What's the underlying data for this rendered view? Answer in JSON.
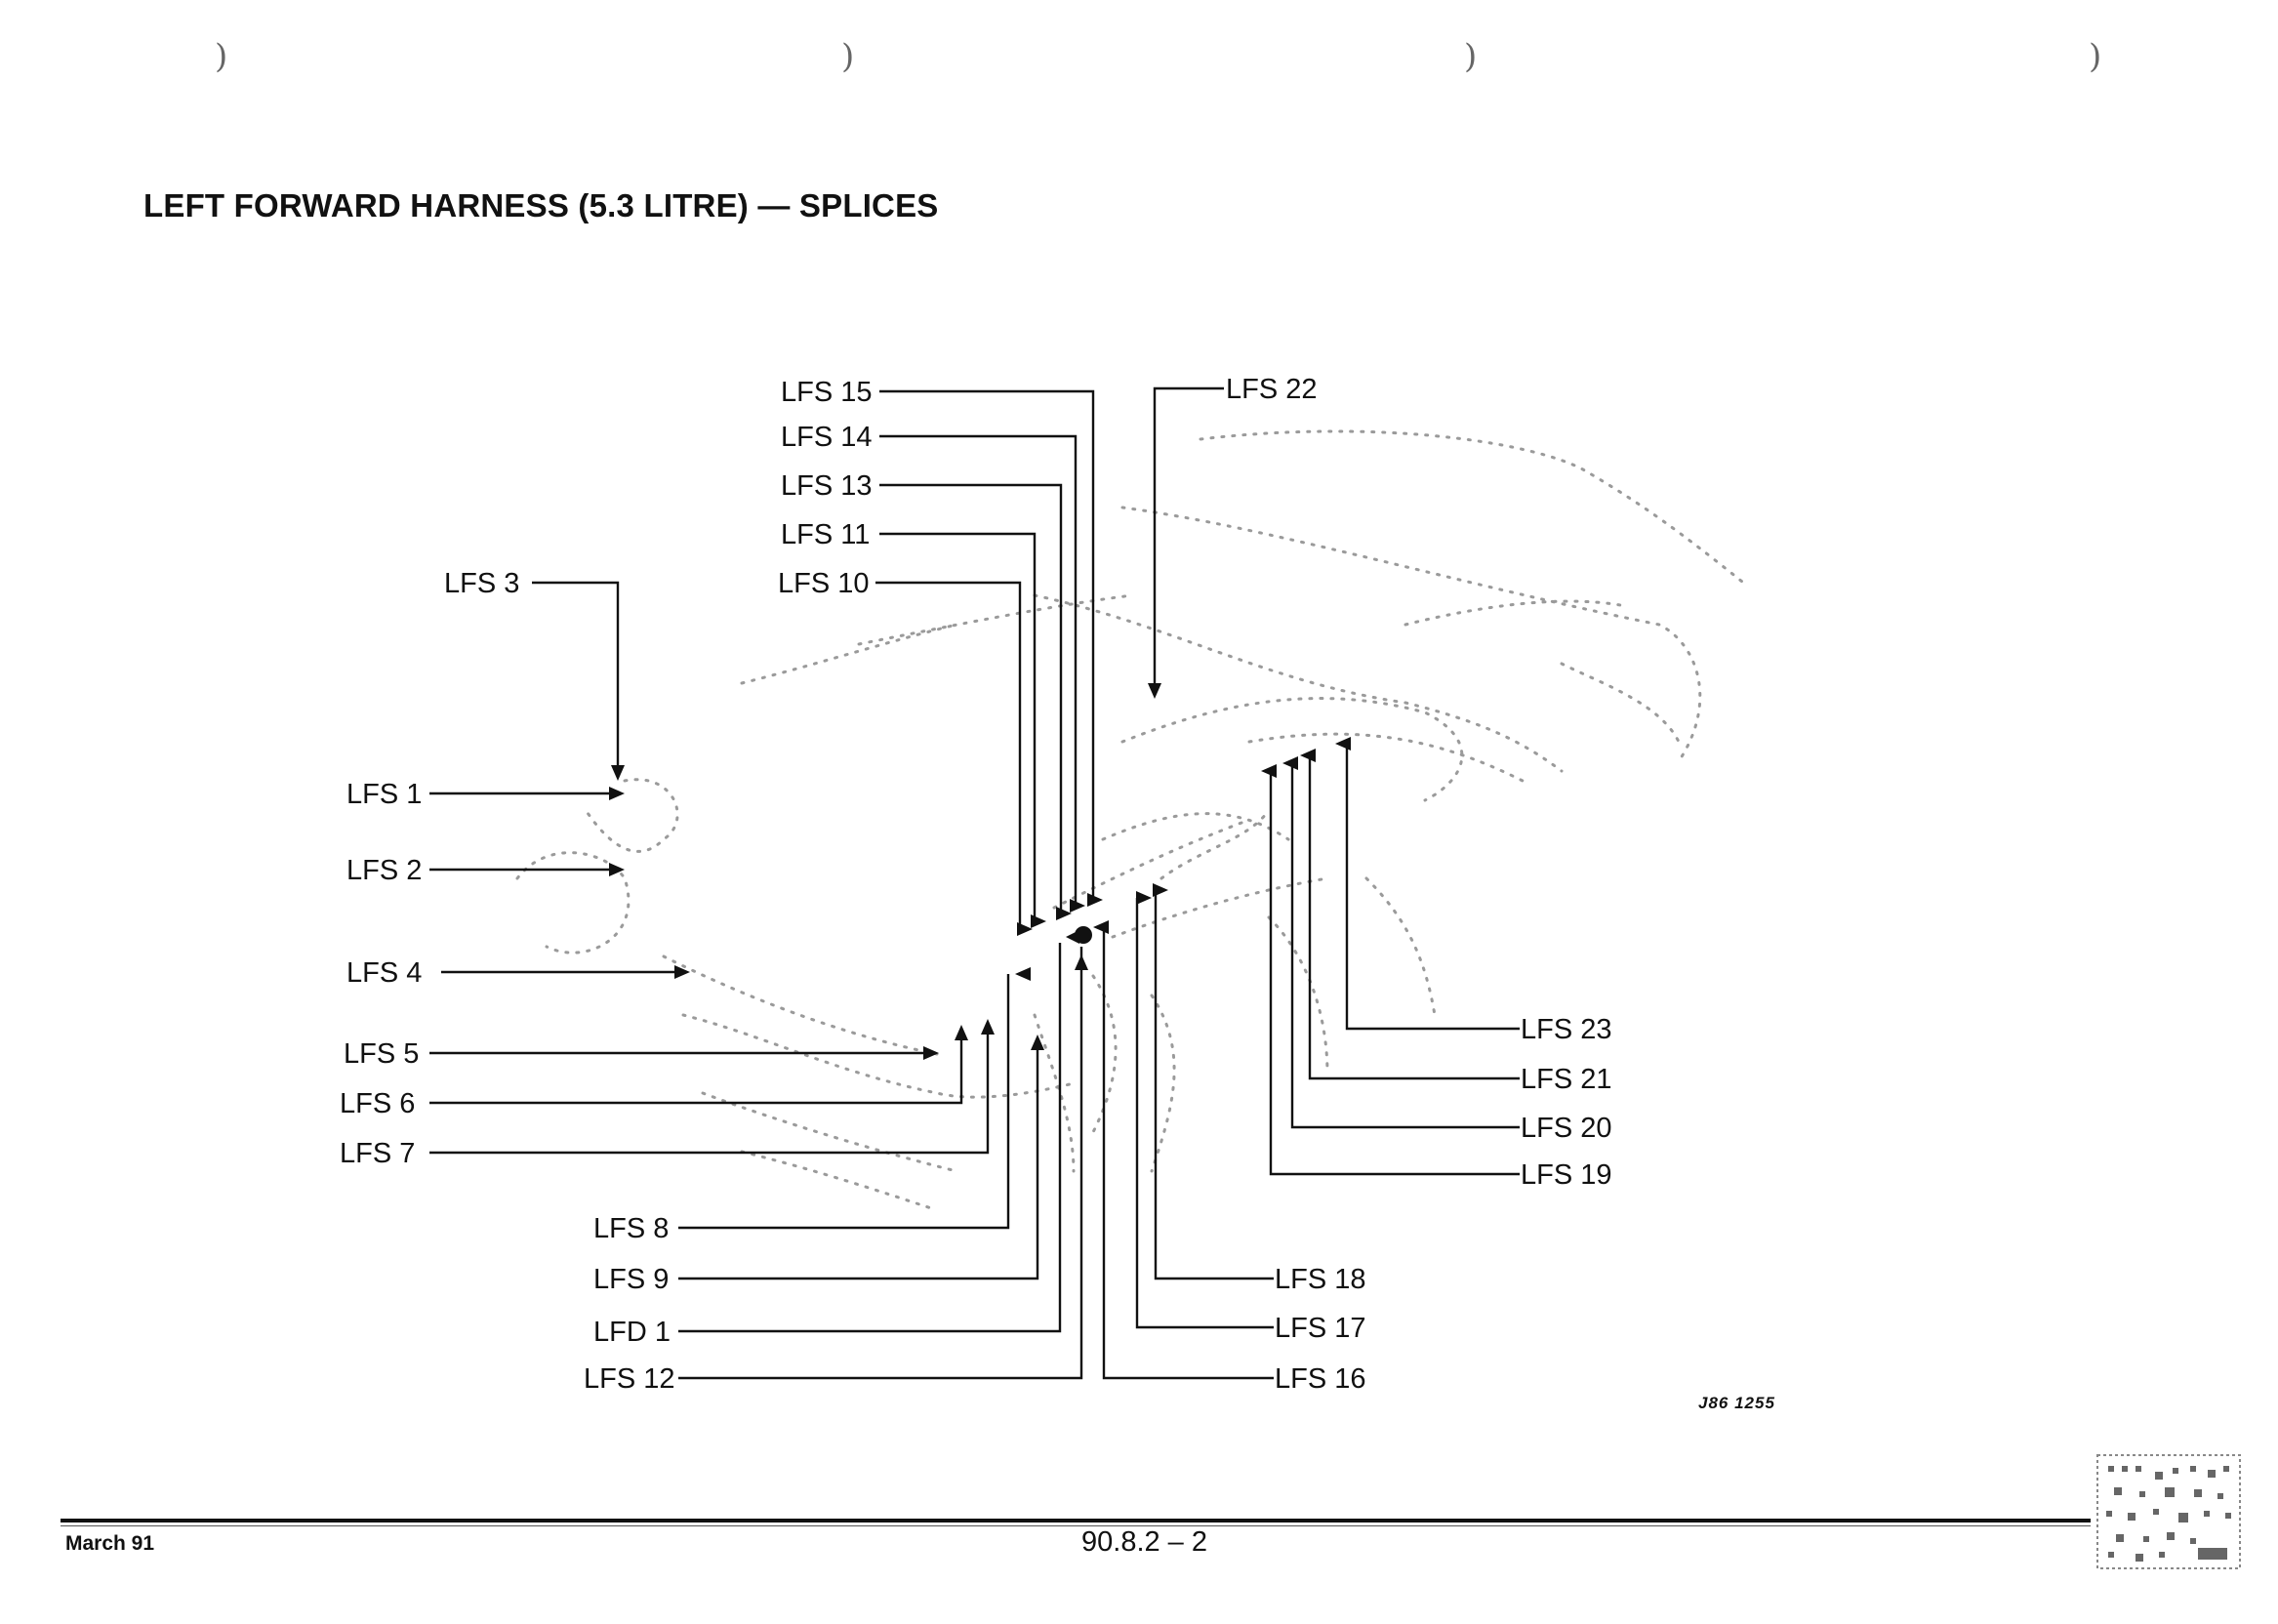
{
  "page": {
    "title": "LEFT FORWARD HARNESS (5.3 LITRE) — SPLICES",
    "figure_ref": "J86 1255",
    "date": "March 91",
    "page_number": "90.8.2 – 2",
    "binder_mark": ")"
  },
  "labels": {
    "lfs1": "LFS 1",
    "lfs2": "LFS 2",
    "lfs3": "LFS 3",
    "lfs4": "LFS 4",
    "lfs5": "LFS 5",
    "lfs6": "LFS 6",
    "lfs7": "LFS 7",
    "lfs8": "LFS 8",
    "lfs9": "LFS 9",
    "lfd1": "LFD 1",
    "lfs10": "LFS 10",
    "lfs11": "LFS 11",
    "lfs12": "LFS 12",
    "lfs13": "LFS 13",
    "lfs14": "LFS 14",
    "lfs15": "LFS 15",
    "lfs16": "LFS 16",
    "lfs17": "LFS 17",
    "lfs18": "LFS 18",
    "lfs19": "LFS 19",
    "lfs20": "LFS 20",
    "lfs21": "LFS 21",
    "lfs22": "LFS 22",
    "lfs23": "LFS 23"
  }
}
